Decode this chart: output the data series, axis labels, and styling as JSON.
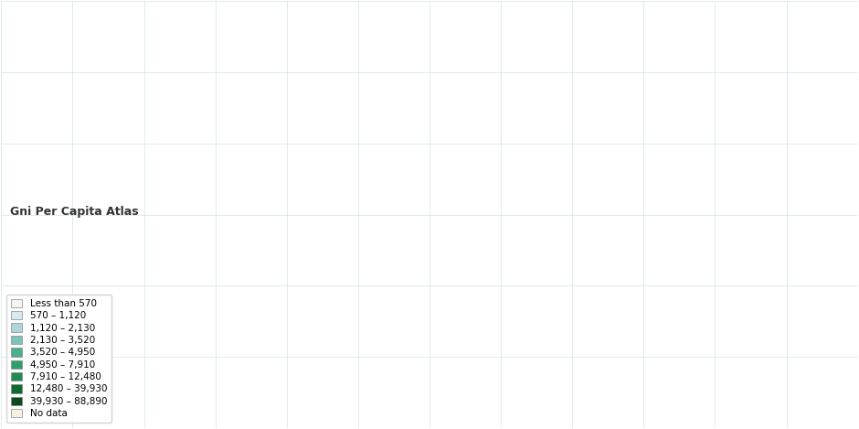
{
  "title": "Gni Per Capita Atlas",
  "legend_labels": [
    "Less than 570",
    "570 – 1,120",
    "1,120 – 2,130",
    "2,130 – 3,520",
    "3,520 – 4,950",
    "4,950 – 7,910",
    "7,910 – 12,480",
    "12,480 – 39,930",
    "39,930 – 88,890",
    "No data"
  ],
  "legend_colors": [
    "#f5f5f0",
    "#d6eaf0",
    "#aed6d8",
    "#7dc4b8",
    "#4aaf8c",
    "#2d9e6e",
    "#1e8c50",
    "#0d6b30",
    "#0a4a1a",
    "#f5f0e0"
  ],
  "ocean_color": "#d6e8f0",
  "graticule_color": "#b0cdd8",
  "background_color": "#ffffff",
  "country_colors": {
    "USA": "#0a4a1a",
    "CAN": "#0a4a1a",
    "GRL": "#f5f0e0",
    "MEX": "#2d9e6e",
    "GTM": "#4aaf8c",
    "BLZ": "#4aaf8c",
    "HND": "#4aaf8c",
    "SLV": "#4aaf8c",
    "NIC": "#4aaf8c",
    "CRI": "#4aaf8c",
    "PAN": "#4aaf8c",
    "CUB": "#4aaf8c",
    "JAM": "#4aaf8c",
    "HTI": "#7dc4b8",
    "DOM": "#4aaf8c",
    "TTO": "#4aaf8c",
    "COL": "#2d9e6e",
    "VEN": "#4aaf8c",
    "GUY": "#4aaf8c",
    "SUR": "#4aaf8c",
    "ECU": "#4aaf8c",
    "PER": "#4aaf8c",
    "BOL": "#4aaf8c",
    "BRA": "#1e8c50",
    "PRY": "#4aaf8c",
    "URY": "#2d9e6e",
    "ARG": "#2d9e6e",
    "CHL": "#2d9e6e",
    "NOR": "#0a4a1a",
    "SWE": "#0a4a1a",
    "FIN": "#0a4a1a",
    "DNK": "#0a4a1a",
    "ISL": "#0a4a1a",
    "IRL": "#0a4a1a",
    "GBR": "#0a4a1a",
    "NLD": "#0a4a1a",
    "BEL": "#0a4a1a",
    "LUX": "#0a4a1a",
    "FRA": "#0a4a1a",
    "ESP": "#0d6b30",
    "PRT": "#0d6b30",
    "DEU": "#0a4a1a",
    "CHE": "#0a4a1a",
    "AUT": "#0a4a1a",
    "ITA": "#0d6b30",
    "GRC": "#0d6b30",
    "POL": "#1e8c50",
    "CZE": "#0d6b30",
    "SVK": "#1e8c50",
    "HUN": "#1e8c50",
    "ROU": "#2d9e6e",
    "BGR": "#2d9e6e",
    "SRB": "#2d9e6e",
    "HRV": "#2d9e6e",
    "BIH": "#2d9e6e",
    "MKD": "#4aaf8c",
    "ALB": "#4aaf8c",
    "SVN": "#0d6b30",
    "MNE": "#4aaf8c",
    "EST": "#0d6b30",
    "LVA": "#1e8c50",
    "LTU": "#1e8c50",
    "BLR": "#4aaf8c",
    "UKR": "#4aaf8c",
    "MDA": "#7dc4b8",
    "RUS": "#1e8c50",
    "KAZ": "#2d9e6e",
    "GEO": "#4aaf8c",
    "ARM": "#4aaf8c",
    "AZE": "#4aaf8c",
    "TUR": "#2d9e6e",
    "CYP": "#0d6b30",
    "ISR": "#0a4a1a",
    "LBN": "#4aaf8c",
    "JOR": "#4aaf8c",
    "SAU": "#0d6b30",
    "KWT": "#0a4a1a",
    "ARE": "#0a4a1a",
    "QAT": "#0a4a1a",
    "BHR": "#0d6b30",
    "OMN": "#0d6b30",
    "YEM": "#7dc4b8",
    "IRQ": "#4aaf8c",
    "IRN": "#4aaf8c",
    "SYR": "#4aaf8c",
    "TKM": "#4aaf8c",
    "UZB": "#7dc4b8",
    "KGZ": "#7dc4b8",
    "TJK": "#aed6d8",
    "AFG": "#aed6d8",
    "PAK": "#aed6d8",
    "IND": "#aed6d8",
    "NPL": "#aed6d8",
    "BGD": "#aed6d8",
    "LKA": "#4aaf8c",
    "MMR": "#aed6d8",
    "THA": "#2d9e6e",
    "VNM": "#4aaf8c",
    "KHM": "#aed6d8",
    "LAO": "#aed6d8",
    "CHN": "#4aaf8c",
    "MNG": "#4aaf8c",
    "KOR": "#0a4a1a",
    "PRK": "#f5f5f0",
    "JPN": "#0a4a1a",
    "PHL": "#4aaf8c",
    "MYS": "#2d9e6e",
    "IDN": "#4aaf8c",
    "PNG": "#aed6d8",
    "AUS": "#0a4a1a",
    "NZL": "#0a4a1a",
    "MAR": "#4aaf8c",
    "DZA": "#4aaf8c",
    "TUN": "#4aaf8c",
    "LBY": "#4aaf8c",
    "EGY": "#4aaf8c",
    "SDN": "#7dc4b8",
    "ETH": "#aed6d8",
    "ERI": "#aed6d8",
    "DJI": "#7dc4b8",
    "SOM": "#aed6d8",
    "KEN": "#aed6d8",
    "TZA": "#aed6d8",
    "UGA": "#aed6d8",
    "RWA": "#aed6d8",
    "BDI": "#aed6d8",
    "COD": "#aed6d8",
    "AGO": "#4aaf8c",
    "ZMB": "#aed6d8",
    "MWI": "#aed6d8",
    "MOZ": "#aed6d8",
    "ZWE": "#aed6d8",
    "ZAF": "#4aaf8c",
    "BWA": "#4aaf8c",
    "NAM": "#4aaf8c",
    "GHA": "#aed6d8",
    "NGA": "#aed6d8",
    "CMR": "#aed6d8",
    "CAF": "#aed6d8",
    "TCD": "#aed6d8",
    "NER": "#aed6d8",
    "MLI": "#aed6d8",
    "SEN": "#aed6d8",
    "GIN": "#aed6d8",
    "CIV": "#aed6d8",
    "BFA": "#aed6d8",
    "TGO": "#aed6d8",
    "BEN": "#aed6d8",
    "LBR": "#aed6d8",
    "SLE": "#aed6d8",
    "GNB": "#aed6d8",
    "GMB": "#aed6d8",
    "MRT": "#aed6d8",
    "CPV": "#4aaf8c",
    "STP": "#aed6d8",
    "GNQ": "#4aaf8c",
    "GAB": "#2d9e6e",
    "COG": "#aed6d8",
    "MDG": "#aed6d8"
  }
}
